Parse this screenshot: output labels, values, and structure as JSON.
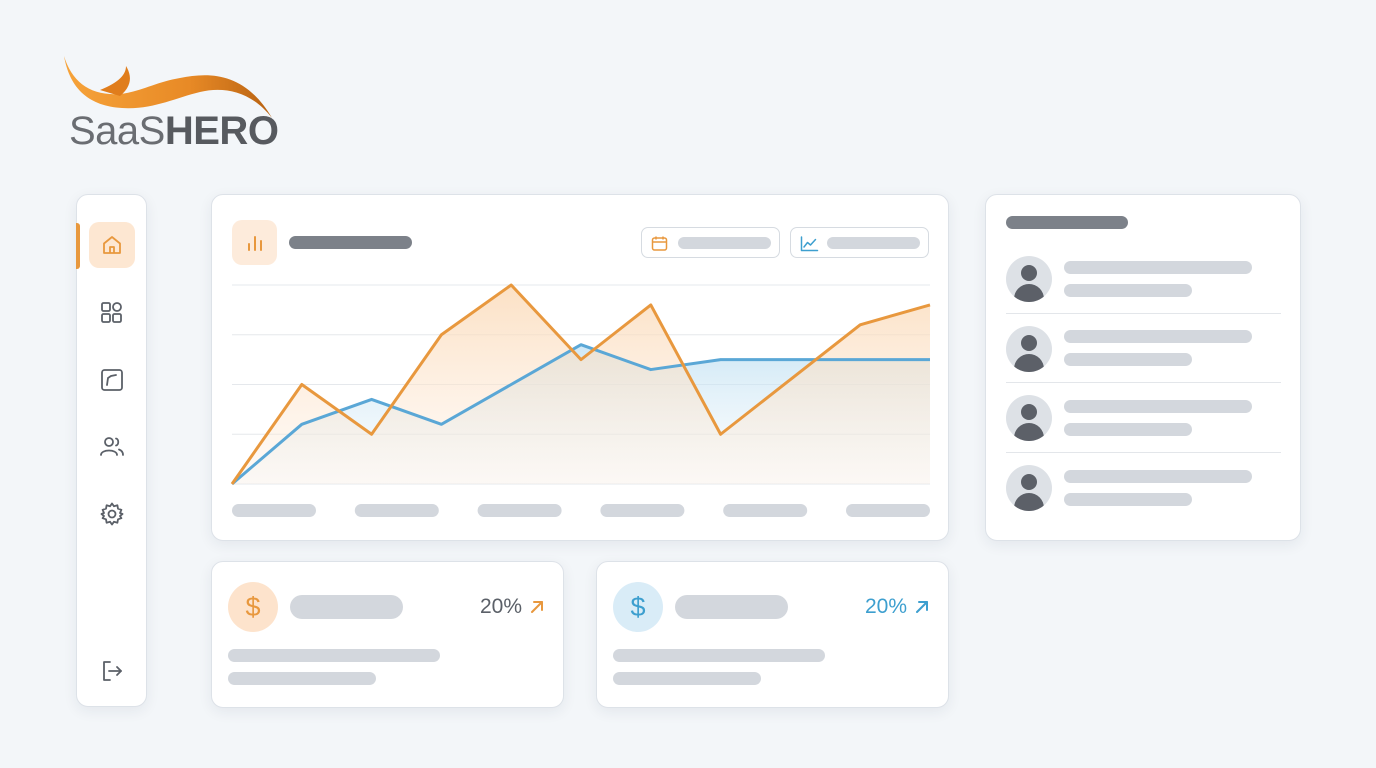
{
  "brand": {
    "name_part1": "Saa",
    "name_part2": "S",
    "name_part3": "HERO",
    "accent_color": "#e8983e",
    "secondary_color": "#5aa7d6"
  },
  "sidebar": {
    "items": [
      {
        "name": "home",
        "icon": "home-icon",
        "active": true
      },
      {
        "name": "apps",
        "icon": "grid-icon",
        "active": false
      },
      {
        "name": "reports",
        "icon": "chart-icon",
        "active": false
      },
      {
        "name": "users",
        "icon": "users-icon",
        "active": false
      },
      {
        "name": "settings",
        "icon": "gear-icon",
        "active": false
      }
    ],
    "logout_icon": "logout-icon"
  },
  "main_chart": {
    "header_icon": "bar-chart-icon",
    "filters": [
      {
        "icon": "calendar-icon"
      },
      {
        "icon": "trend-icon"
      }
    ],
    "chart_data": {
      "type": "area",
      "x": [
        0,
        1,
        2,
        3,
        4,
        5,
        6,
        7,
        8,
        9,
        10
      ],
      "series": [
        {
          "color": "#e8983e",
          "values": [
            0,
            2,
            1,
            3,
            4,
            2.5,
            3.6,
            1,
            2.1,
            3.2,
            3.6
          ]
        },
        {
          "color": "#5aa7d6",
          "values": [
            0,
            1.2,
            1.7,
            1.2,
            2,
            2.8,
            2.3,
            2.5,
            2.5,
            2.5,
            2.5
          ]
        }
      ],
      "grid": true,
      "x_tick_count": 6
    }
  },
  "stats": [
    {
      "icon_glyph": "$",
      "icon": "dollar-icon",
      "percent": "20%",
      "trend_icon": "arrow-up-right-icon",
      "color": "#e8983e"
    },
    {
      "icon_glyph": "$",
      "icon": "dollar-icon",
      "percent": "20%",
      "trend_icon": "arrow-up-right-icon",
      "color": "#3d9fcf"
    }
  ],
  "list": {
    "item_count": 4,
    "avatar_icon": "user-avatar-icon"
  }
}
